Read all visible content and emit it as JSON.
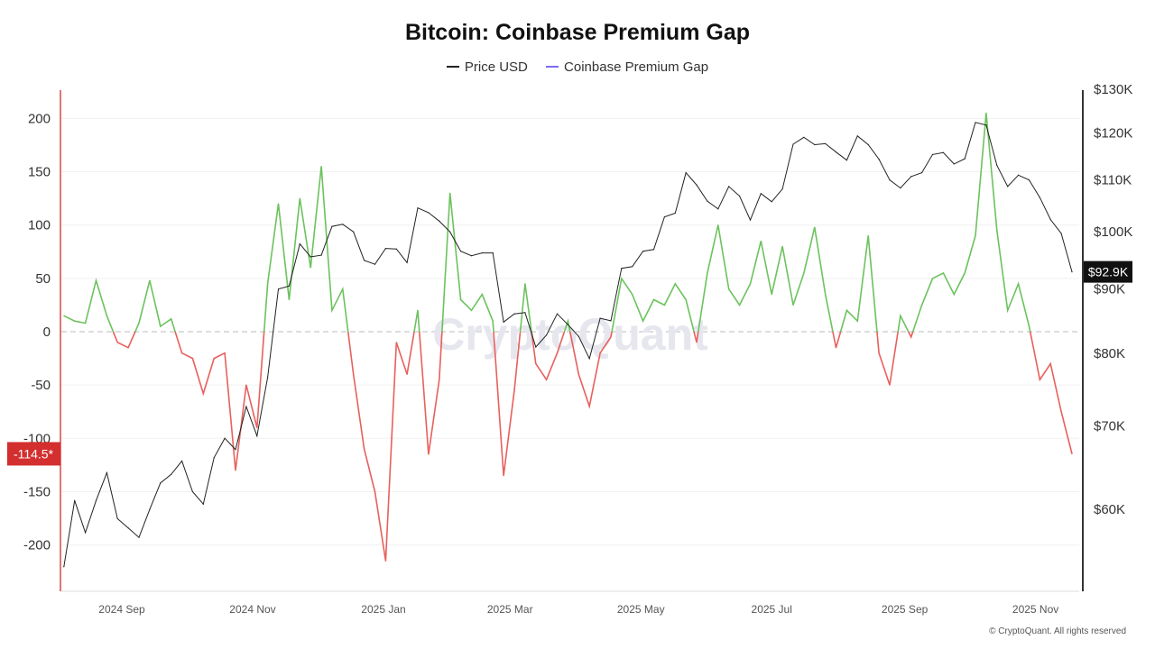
{
  "chart_data": {
    "type": "line",
    "title": "Bitcoin: Coinbase Premium Gap",
    "legend": [
      {
        "name": "Price USD",
        "color": "#222222"
      },
      {
        "name": "Coinbase Premium Gap",
        "color": "#7b6cf6"
      }
    ],
    "legend_position": "top",
    "grid": true,
    "left_axis": {
      "ticks": [
        200,
        150,
        100,
        50,
        0,
        -50,
        -100,
        -150,
        -200
      ],
      "ylim": [
        -246,
        226
      ]
    },
    "right_axis": {
      "scale": "log",
      "ticks": [
        "$130K",
        "$120K",
        "$110K",
        "$100K",
        "$90K",
        "$80K",
        "$70K",
        "$60K"
      ],
      "tick_values": [
        130,
        120,
        110,
        100,
        90,
        80,
        70,
        60
      ],
      "ylim_k": [
        51.3,
        130
      ]
    },
    "x_ticks": [
      {
        "label": "2024 Sep",
        "date": "2024-09-01"
      },
      {
        "label": "2024 Nov",
        "date": "2024-11-01"
      },
      {
        "label": "2025 Jan",
        "date": "2025-01-01"
      },
      {
        "label": "2025 Mar",
        "date": "2025-03-01"
      },
      {
        "label": "2025 May",
        "date": "2025-05-01"
      },
      {
        "label": "2025 Jul",
        "date": "2025-07-01"
      },
      {
        "label": "2025 Sep",
        "date": "2025-09-01"
      },
      {
        "label": "2025 Nov",
        "date": "2025-11-01"
      }
    ],
    "colors": {
      "positive": "#6cc25e",
      "negative": "#e8605c"
    },
    "last_price_label": "$92.9K",
    "last_premium_label": "-114.5*",
    "x": [
      "2024-08-05",
      "2024-08-10",
      "2024-08-15",
      "2024-08-20",
      "2024-08-25",
      "2024-08-30",
      "2024-09-04",
      "2024-09-09",
      "2024-09-14",
      "2024-09-19",
      "2024-09-24",
      "2024-09-29",
      "2024-10-04",
      "2024-10-09",
      "2024-10-14",
      "2024-10-19",
      "2024-10-24",
      "2024-10-29",
      "2024-11-03",
      "2024-11-08",
      "2024-11-13",
      "2024-11-18",
      "2024-11-23",
      "2024-11-28",
      "2024-12-03",
      "2024-12-08",
      "2024-12-13",
      "2024-12-18",
      "2024-12-23",
      "2024-12-28",
      "2025-01-02",
      "2025-01-07",
      "2025-01-12",
      "2025-01-17",
      "2025-01-22",
      "2025-01-27",
      "2025-02-01",
      "2025-02-06",
      "2025-02-11",
      "2025-02-16",
      "2025-02-21",
      "2025-02-26",
      "2025-03-03",
      "2025-03-08",
      "2025-03-13",
      "2025-03-18",
      "2025-03-23",
      "2025-03-28",
      "2025-04-02",
      "2025-04-07",
      "2025-04-12",
      "2025-04-17",
      "2025-04-22",
      "2025-04-27",
      "2025-05-02",
      "2025-05-07",
      "2025-05-12",
      "2025-05-17",
      "2025-05-22",
      "2025-05-27",
      "2025-06-01",
      "2025-06-06",
      "2025-06-11",
      "2025-06-16",
      "2025-06-21",
      "2025-06-26",
      "2025-07-01",
      "2025-07-06",
      "2025-07-11",
      "2025-07-16",
      "2025-07-21",
      "2025-07-26",
      "2025-07-31",
      "2025-08-05",
      "2025-08-10",
      "2025-08-15",
      "2025-08-20",
      "2025-08-25",
      "2025-08-30",
      "2025-09-04",
      "2025-09-09",
      "2025-09-14",
      "2025-09-19",
      "2025-09-24",
      "2025-09-29",
      "2025-10-04",
      "2025-10-09",
      "2025-10-14",
      "2025-10-19",
      "2025-10-24",
      "2025-10-29",
      "2025-11-03",
      "2025-11-08",
      "2025-11-13",
      "2025-11-18"
    ],
    "series": [
      {
        "name": "Price USD",
        "unit": "K USD",
        "values": [
          54.0,
          61.0,
          57.5,
          61.0,
          64.2,
          59.0,
          58.0,
          57.0,
          60.0,
          63.0,
          64.0,
          65.6,
          62.0,
          60.6,
          66.0,
          68.4,
          67.0,
          72.5,
          68.7,
          76.5,
          90.0,
          90.5,
          97.8,
          95.5,
          95.8,
          101.0,
          101.4,
          100.0,
          94.9,
          94.2,
          97.0,
          96.9,
          94.5,
          104.5,
          103.6,
          102.0,
          100.0,
          96.5,
          95.7,
          96.2,
          96.2,
          84.7,
          86.0,
          86.2,
          80.9,
          82.7,
          86.0,
          84.3,
          82.5,
          79.2,
          85.3,
          84.9,
          93.5,
          93.8,
          96.5,
          96.8,
          102.8,
          103.5,
          111.5,
          109.0,
          105.8,
          104.3,
          108.7,
          106.8,
          102.2,
          107.3,
          105.7,
          108.2,
          117.5,
          119.0,
          117.4,
          117.6,
          115.8,
          114.1,
          119.3,
          117.4,
          114.3,
          110.0,
          108.4,
          110.7,
          111.5,
          115.3,
          115.7,
          113.3,
          114.4,
          122.3,
          121.7,
          113.0,
          108.7,
          111.0,
          110.0,
          106.5,
          102.3,
          99.7,
          92.9
        ]
      },
      {
        "name": "Coinbase Premium Gap",
        "values": [
          15,
          10,
          8,
          48,
          15,
          -10,
          -15,
          8,
          48,
          5,
          12,
          -20,
          -25,
          -58,
          -25,
          -20,
          -130,
          -50,
          -90,
          45,
          120,
          30,
          125,
          60,
          155,
          20,
          40,
          -40,
          -110,
          -150,
          -215,
          -10,
          -40,
          20,
          -115,
          -45,
          130,
          30,
          20,
          35,
          10,
          -135,
          -55,
          45,
          -30,
          -45,
          -20,
          10,
          -40,
          -70,
          -20,
          -5,
          50,
          35,
          10,
          30,
          25,
          45,
          30,
          -10,
          55,
          100,
          40,
          25,
          45,
          85,
          35,
          80,
          25,
          55,
          98,
          35,
          -15,
          20,
          10,
          90,
          -20,
          -50,
          15,
          -5,
          25,
          50,
          55,
          35,
          55,
          90,
          205,
          95,
          20,
          45,
          5,
          -45,
          -30,
          -75,
          -114.5
        ]
      }
    ]
  },
  "watermark": "CryptoQuant",
  "copyright": "© CryptoQuant. All rights reserved"
}
